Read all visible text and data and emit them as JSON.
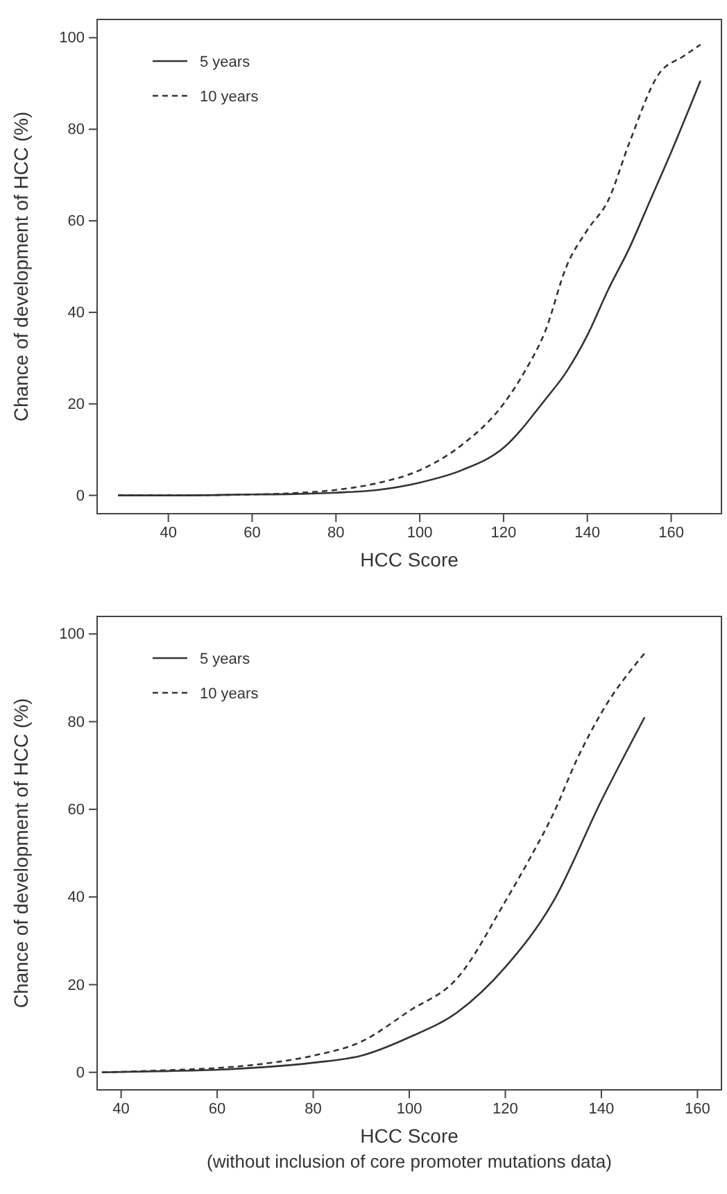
{
  "chart_data": [
    {
      "type": "line",
      "xlabel": "HCC Score",
      "ylabel": "Chance of development of HCC (%)",
      "xlim": [
        23,
        172
      ],
      "ylim": [
        -4,
        104
      ],
      "xticks": [
        40,
        60,
        80,
        100,
        120,
        140,
        160
      ],
      "yticks": [
        0,
        20,
        40,
        60,
        80,
        100
      ],
      "legend": "top left",
      "grid": false,
      "marker": "none",
      "series": [
        {
          "name": "5 years",
          "color": "#333333",
          "line_style": "solid",
          "x": [
            28,
            40,
            60,
            70,
            80,
            90,
            100,
            110,
            120,
            130,
            135,
            140,
            145,
            150,
            155,
            160,
            167
          ],
          "values": [
            0,
            0,
            0.2,
            0.3,
            0.6,
            1.2,
            2.8,
            5.5,
            10.4,
            21,
            27,
            35,
            45,
            54,
            64.5,
            75,
            90.6
          ]
        },
        {
          "name": "10 years",
          "color": "#333333",
          "line_style": "dashed",
          "x": [
            28,
            40,
            60,
            70,
            80,
            90,
            100,
            110,
            120,
            125,
            130,
            135,
            140,
            145,
            150,
            157,
            163,
            167
          ],
          "values": [
            0,
            0,
            0.2,
            0.5,
            1.2,
            2.7,
            5.5,
            11,
            20,
            27,
            36,
            50,
            58,
            64.5,
            77,
            92,
            96,
            98.5
          ]
        }
      ]
    },
    {
      "type": "line",
      "xlabel": "HCC Score",
      "ylabel": "Chance of development of HCC (%)",
      "xlim": [
        35,
        165
      ],
      "ylim": [
        -4,
        104
      ],
      "xticks": [
        40,
        60,
        80,
        100,
        120,
        140,
        160
      ],
      "yticks": [
        0,
        20,
        40,
        60,
        80,
        100
      ],
      "legend": "top left",
      "grid": false,
      "marker": "none",
      "annotations": [
        "(without inclusion of core promoter mutations data)"
      ],
      "series": [
        {
          "name": "5 years",
          "color": "#333333",
          "line_style": "solid",
          "x": [
            36,
            50,
            60,
            70,
            80,
            90,
            100,
            110,
            120,
            130,
            140,
            149
          ],
          "values": [
            0,
            0.3,
            0.6,
            1.2,
            2.2,
            3.8,
            8,
            13.7,
            24,
            39,
            62,
            81
          ]
        },
        {
          "name": "10 years",
          "color": "#333333",
          "line_style": "dashed",
          "x": [
            36,
            50,
            60,
            70,
            80,
            90,
            100,
            110,
            120,
            125,
            130,
            135,
            140,
            149
          ],
          "values": [
            0,
            0.5,
            1,
            2,
            3.8,
            7,
            14,
            21.5,
            39,
            48.6,
            59,
            71.6,
            82,
            95.6
          ]
        }
      ]
    }
  ]
}
